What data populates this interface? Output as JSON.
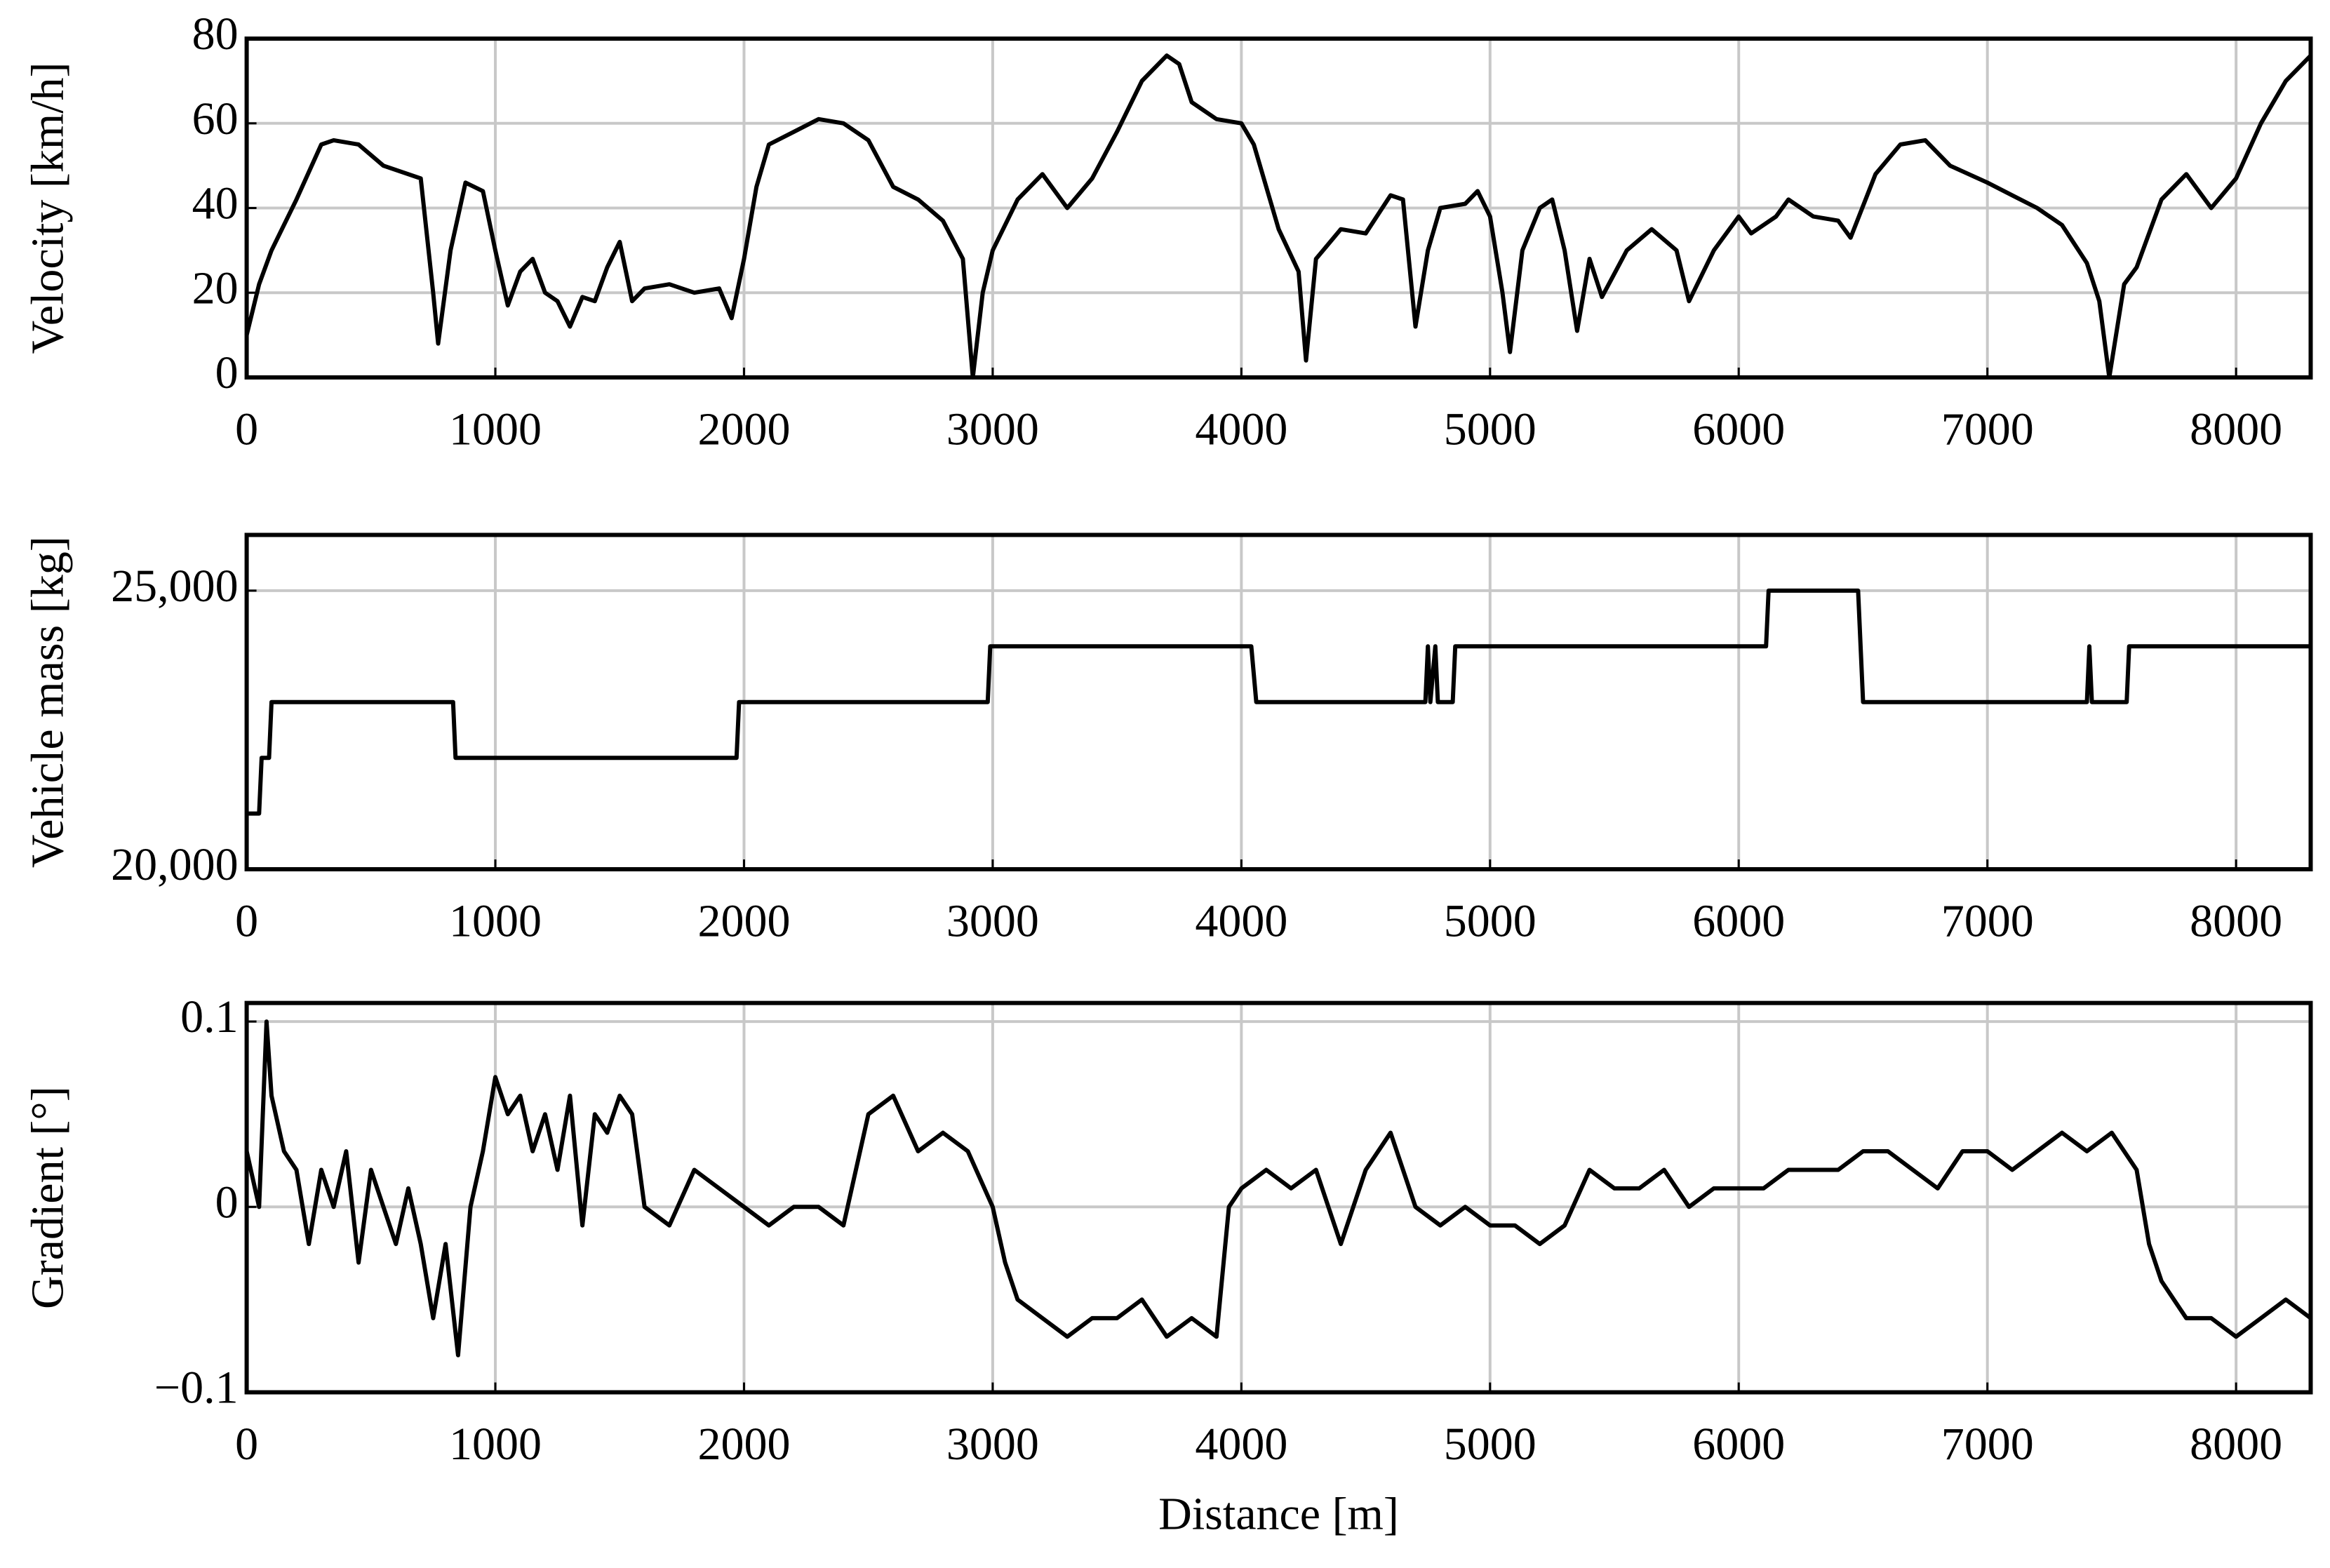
{
  "chart_data": [
    {
      "type": "line",
      "ylabel": "Velocity [km/h]",
      "color": "#000000",
      "grid": true,
      "x": [
        0,
        50,
        100,
        200,
        300,
        350,
        450,
        550,
        700,
        750,
        770,
        820,
        880,
        950,
        1000,
        1050,
        1100,
        1150,
        1200,
        1250,
        1300,
        1350,
        1400,
        1450,
        1500,
        1550,
        1600,
        1700,
        1800,
        1900,
        1950,
        2000,
        2050,
        2100,
        2200,
        2300,
        2400,
        2500,
        2600,
        2700,
        2800,
        2880,
        2920,
        2960,
        3000,
        3100,
        3200,
        3300,
        3400,
        3500,
        3600,
        3700,
        3750,
        3800,
        3900,
        4000,
        4050,
        4150,
        4230,
        4260,
        4300,
        4400,
        4500,
        4600,
        4650,
        4700,
        4750,
        4800,
        4900,
        4950,
        5000,
        5050,
        5080,
        5130,
        5200,
        5250,
        5300,
        5350,
        5400,
        5450,
        5550,
        5650,
        5750,
        5800,
        5900,
        6000,
        6050,
        6150,
        6200,
        6300,
        6400,
        6450,
        6550,
        6650,
        6750,
        6850,
        7000,
        7100,
        7200,
        7300,
        7400,
        7450,
        7490,
        7550,
        7600,
        7700,
        7800,
        7900,
        8000,
        8100,
        8200,
        8300
      ],
      "values": [
        10,
        22,
        30,
        42,
        55,
        56,
        55,
        50,
        47,
        20,
        8,
        30,
        46,
        44,
        30,
        17,
        25,
        28,
        20,
        18,
        12,
        19,
        18,
        26,
        32,
        18,
        21,
        22,
        20,
        21,
        14,
        28,
        45,
        55,
        58,
        61,
        60,
        56,
        45,
        42,
        37,
        28,
        0,
        20,
        30,
        42,
        48,
        40,
        47,
        58,
        70,
        76,
        74,
        65,
        61,
        60,
        55,
        35,
        25,
        4,
        28,
        35,
        34,
        43,
        42,
        12,
        30,
        40,
        41,
        44,
        38,
        20,
        6,
        30,
        40,
        42,
        30,
        11,
        28,
        19,
        30,
        35,
        30,
        18,
        30,
        38,
        34,
        38,
        42,
        38,
        37,
        33,
        48,
        55,
        56,
        50,
        46,
        43,
        40,
        36,
        27,
        18,
        0,
        22,
        26,
        42,
        48,
        40,
        47,
        60,
        70,
        76
      ],
      "xlim": [
        0,
        8300
      ],
      "xticks": [
        0,
        1000,
        2000,
        3000,
        4000,
        5000,
        6000,
        7000,
        8000
      ],
      "ylim": [
        0,
        80
      ],
      "yticks": [
        0,
        20,
        40,
        60,
        80
      ]
    },
    {
      "type": "line",
      "ylabel": "Vehicle mass [kg]",
      "color": "#000000",
      "grid": true,
      "x": [
        0,
        50,
        60,
        90,
        100,
        830,
        840,
        1970,
        1980,
        2980,
        2990,
        4040,
        4060,
        4740,
        4750,
        4760,
        4780,
        4790,
        4850,
        4860,
        6110,
        6120,
        6480,
        6500,
        7400,
        7410,
        7420,
        7560,
        7570,
        8300
      ],
      "values": [
        21000,
        21000,
        22000,
        22000,
        23000,
        23000,
        22000,
        22000,
        23000,
        23000,
        24000,
        24000,
        23000,
        23000,
        24000,
        23000,
        24000,
        23000,
        23000,
        24000,
        24000,
        25000,
        25000,
        23000,
        23000,
        24000,
        23000,
        23000,
        24000,
        24000
      ],
      "xlim": [
        0,
        8300
      ],
      "xticks": [
        0,
        1000,
        2000,
        3000,
        4000,
        5000,
        6000,
        7000,
        8000
      ],
      "ylim": [
        20000,
        26000
      ],
      "yticks": [
        {
          "value": 20000,
          "label": "20,000"
        },
        {
          "value": 25000,
          "label": "25,000"
        }
      ]
    },
    {
      "type": "line",
      "ylabel": "Gradient [°]",
      "xlabel": "Distance [m]",
      "color": "#000000",
      "grid": true,
      "x": [
        0,
        50,
        80,
        100,
        150,
        200,
        250,
        300,
        350,
        400,
        450,
        500,
        550,
        600,
        650,
        700,
        750,
        800,
        850,
        900,
        950,
        1000,
        1050,
        1100,
        1150,
        1200,
        1250,
        1300,
        1350,
        1400,
        1450,
        1500,
        1550,
        1600,
        1700,
        1800,
        1900,
        2000,
        2100,
        2200,
        2300,
        2400,
        2500,
        2600,
        2700,
        2800,
        2900,
        3000,
        3050,
        3100,
        3200,
        3300,
        3400,
        3500,
        3600,
        3700,
        3800,
        3900,
        3950,
        4000,
        4100,
        4200,
        4300,
        4400,
        4500,
        4600,
        4700,
        4800,
        4900,
        5000,
        5100,
        5200,
        5300,
        5400,
        5500,
        5600,
        5700,
        5800,
        5900,
        6000,
        6100,
        6200,
        6300,
        6400,
        6500,
        6600,
        6700,
        6800,
        6900,
        7000,
        7100,
        7200,
        7300,
        7400,
        7500,
        7600,
        7650,
        7700,
        7800,
        7900,
        8000,
        8100,
        8200,
        8300
      ],
      "values": [
        0.03,
        0.0,
        0.1,
        0.06,
        0.03,
        0.02,
        -0.02,
        0.02,
        0.0,
        0.03,
        -0.03,
        0.02,
        0.0,
        -0.02,
        0.01,
        -0.02,
        -0.06,
        -0.02,
        -0.08,
        0.0,
        0.03,
        0.07,
        0.05,
        0.06,
        0.03,
        0.05,
        0.02,
        0.06,
        -0.01,
        0.05,
        0.04,
        0.06,
        0.05,
        0.0,
        -0.01,
        0.02,
        0.01,
        0.0,
        -0.01,
        0.0,
        0.0,
        -0.01,
        0.05,
        0.06,
        0.03,
        0.04,
        0.03,
        0.0,
        -0.03,
        -0.05,
        -0.06,
        -0.07,
        -0.06,
        -0.06,
        -0.05,
        -0.07,
        -0.06,
        -0.07,
        0.0,
        0.01,
        0.02,
        0.01,
        0.02,
        -0.02,
        0.02,
        0.04,
        0.0,
        -0.01,
        0.0,
        -0.01,
        -0.01,
        -0.02,
        -0.01,
        0.02,
        0.01,
        0.01,
        0.02,
        0.0,
        0.01,
        0.01,
        0.01,
        0.02,
        0.02,
        0.02,
        0.03,
        0.03,
        0.02,
        0.01,
        0.03,
        0.03,
        0.02,
        0.03,
        0.04,
        0.03,
        0.04,
        0.02,
        -0.02,
        -0.04,
        -0.06,
        -0.06,
        -0.07,
        -0.06,
        -0.05,
        -0.06
      ],
      "xlim": [
        0,
        8300
      ],
      "xticks": [
        0,
        1000,
        2000,
        3000,
        4000,
        5000,
        6000,
        7000,
        8000
      ],
      "ylim": [
        -0.1,
        0.11
      ],
      "yticks": [
        {
          "value": -0.1,
          "label": "−0.1"
        },
        0,
        0.1
      ]
    }
  ]
}
